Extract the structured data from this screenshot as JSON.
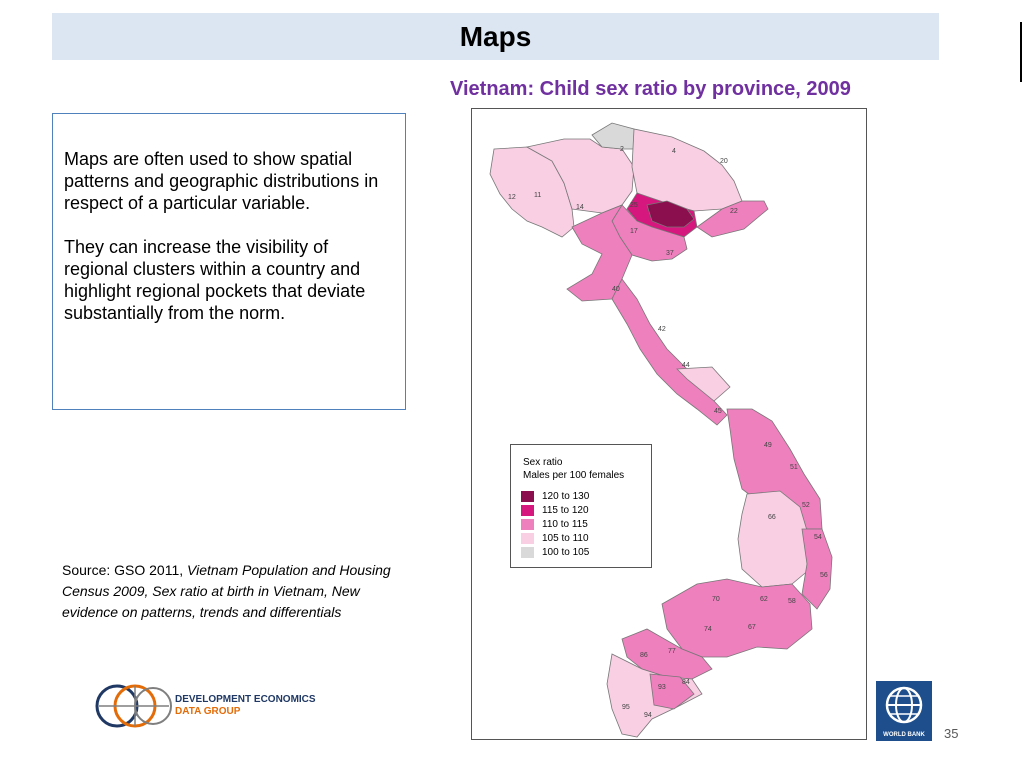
{
  "slide": {
    "title": "Maps",
    "map_title": "Vietnam: Child sex ratio by province, 2009",
    "paragraphs": [
      "Maps  are often used to show spatial patterns and  geographic distributions in respect of a particular variable.",
      "They can  increase the visibility of regional clusters within a country and  highlight regional pockets  that deviate substantially from the norm."
    ],
    "source_prefix": "Source: GSO 2011, ",
    "source_italic": "Vietnam Population and Housing Census 2009, Sex ratio at birth in Vietnam, New evidence on patterns, trends and differentials",
    "page_number": "35"
  },
  "legend": {
    "title_line1": "Sex ratio",
    "title_line2": "Males per 100 females",
    "classes": [
      {
        "label": "120 to 130",
        "color": "#8b0e4e"
      },
      {
        "label": "115 to 120",
        "color": "#d6177d"
      },
      {
        "label": "110 to 115",
        "color": "#ee80be"
      },
      {
        "label": "105 to 110",
        "color": "#f8cfe3"
      },
      {
        "label": "100 to 105",
        "color": "#d9d9d9"
      }
    ]
  },
  "map_labels": [
    "2",
    "4",
    "11",
    "12",
    "14",
    "17",
    "20",
    "22",
    "25",
    "37",
    "40",
    "42",
    "44",
    "45",
    "49",
    "51",
    "52",
    "54",
    "56",
    "58",
    "62",
    "66",
    "67",
    "70",
    "74",
    "77",
    "84",
    "86",
    "93",
    "94",
    "95"
  ],
  "logos": {
    "deg_line1": "DEVELOPMENT ECONOMICS",
    "deg_line2": "DATA GROUP",
    "wb_label": "WORLD BANK"
  },
  "colors": {
    "title_bar": "#dce6f2",
    "map_title": "#7030a0",
    "textbox_border": "#4f81bd"
  }
}
